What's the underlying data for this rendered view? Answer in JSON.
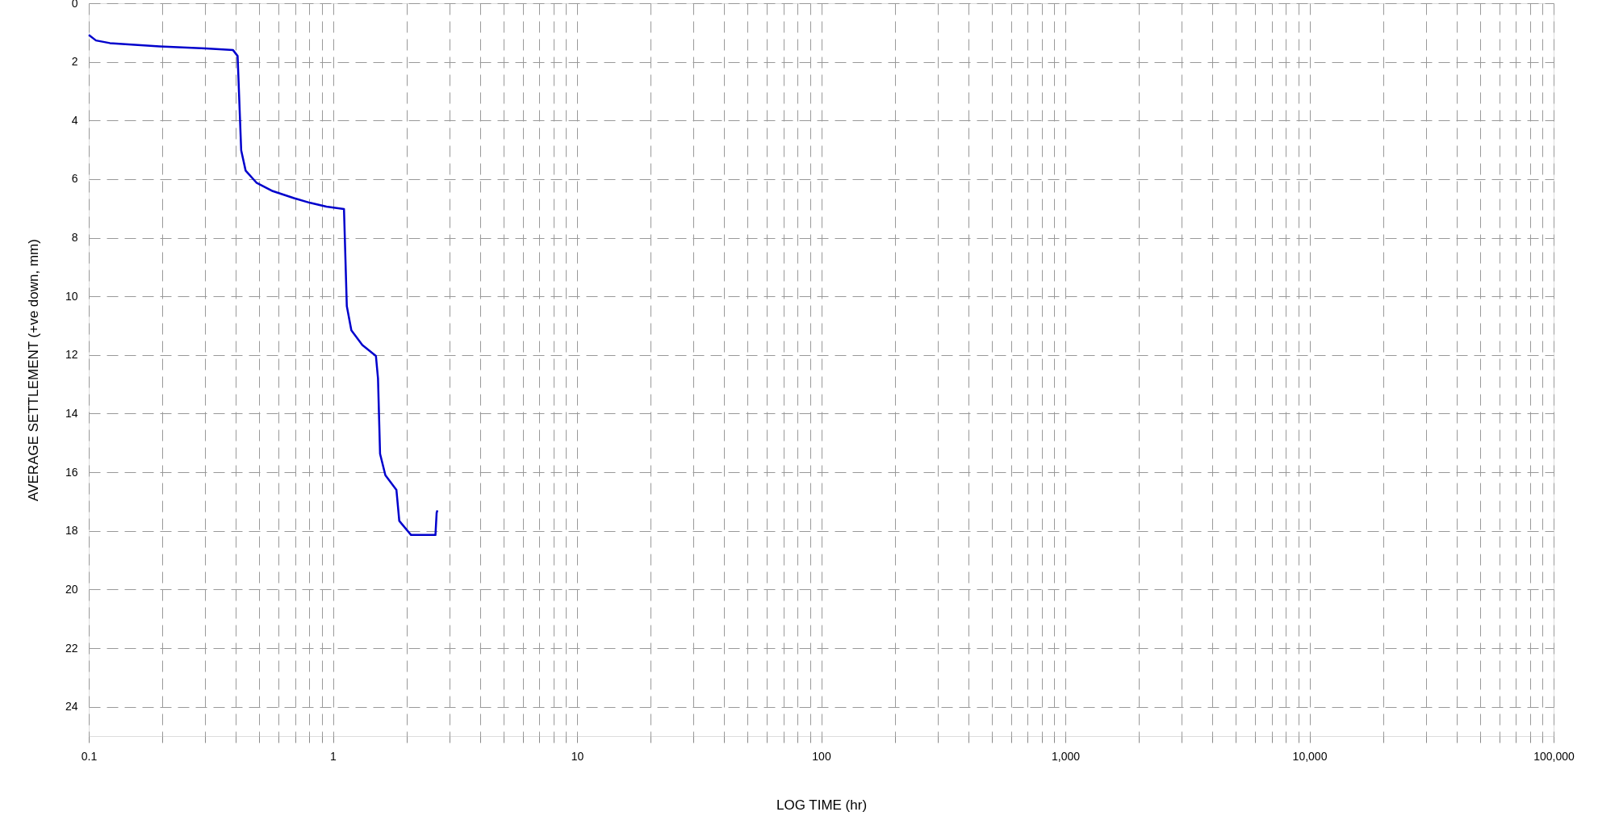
{
  "chart_data": {
    "type": "line",
    "xlabel": "LOG TIME (hr)",
    "ylabel": "AVERAGE SETTLEMENT (+ve down, mm)",
    "log": "x",
    "grid": true,
    "line_style": "solid",
    "xlim": [
      0.1,
      100000
    ],
    "ylim": [
      25,
      0
    ],
    "xticks": [
      {
        "value": 0.1,
        "label": "0.1"
      },
      {
        "value": 0.2,
        "label": null
      },
      {
        "value": 0.3,
        "label": null
      },
      {
        "value": 0.4,
        "label": null
      },
      {
        "value": 0.5,
        "label": null
      },
      {
        "value": 0.6,
        "label": null
      },
      {
        "value": 0.7,
        "label": null
      },
      {
        "value": 0.8,
        "label": null
      },
      {
        "value": 0.9,
        "label": null
      },
      {
        "value": 1,
        "label": "1"
      },
      {
        "value": 2,
        "label": null
      },
      {
        "value": 3,
        "label": null
      },
      {
        "value": 4,
        "label": null
      },
      {
        "value": 5,
        "label": null
      },
      {
        "value": 6,
        "label": null
      },
      {
        "value": 7,
        "label": null
      },
      {
        "value": 8,
        "label": null
      },
      {
        "value": 9,
        "label": null
      },
      {
        "value": 10,
        "label": "10"
      },
      {
        "value": 20,
        "label": null
      },
      {
        "value": 30,
        "label": null
      },
      {
        "value": 40,
        "label": null
      },
      {
        "value": 50,
        "label": null
      },
      {
        "value": 60,
        "label": null
      },
      {
        "value": 70,
        "label": null
      },
      {
        "value": 80,
        "label": null
      },
      {
        "value": 90,
        "label": null
      },
      {
        "value": 100,
        "label": "100"
      },
      {
        "value": 200,
        "label": null
      },
      {
        "value": 300,
        "label": null
      },
      {
        "value": 400,
        "label": null
      },
      {
        "value": 500,
        "label": null
      },
      {
        "value": 600,
        "label": null
      },
      {
        "value": 700,
        "label": null
      },
      {
        "value": 800,
        "label": null
      },
      {
        "value": 900,
        "label": null
      },
      {
        "value": 1000,
        "label": "1,000"
      },
      {
        "value": 2000,
        "label": null
      },
      {
        "value": 3000,
        "label": null
      },
      {
        "value": 4000,
        "label": null
      },
      {
        "value": 5000,
        "label": null
      },
      {
        "value": 6000,
        "label": null
      },
      {
        "value": 7000,
        "label": null
      },
      {
        "value": 8000,
        "label": null
      },
      {
        "value": 9000,
        "label": null
      },
      {
        "value": 10000,
        "label": "10,000"
      },
      {
        "value": 20000,
        "label": null
      },
      {
        "value": 30000,
        "label": null
      },
      {
        "value": 40000,
        "label": null
      },
      {
        "value": 50000,
        "label": null
      },
      {
        "value": 60000,
        "label": null
      },
      {
        "value": 70000,
        "label": null
      },
      {
        "value": 80000,
        "label": null
      },
      {
        "value": 90000,
        "label": null
      },
      {
        "value": 100000,
        "label": "100,000"
      }
    ],
    "yticks": [
      0,
      2,
      4,
      6,
      8,
      10,
      12,
      14,
      16,
      18,
      20,
      22,
      24
    ],
    "series": [
      {
        "color": "#0000cc",
        "x": [
          0.1,
          0.107,
          0.122,
          0.195,
          0.301,
          0.39,
          0.407,
          0.421,
          0.439,
          0.486,
          0.567,
          0.693,
          0.807,
          0.941,
          1.11,
          1.14,
          1.19,
          1.32,
          1.5,
          1.53,
          1.56,
          1.64,
          1.82,
          1.87,
          2.09,
          2.63,
          2.66,
          2.68
        ],
        "values": [
          1.08,
          1.27,
          1.36,
          1.47,
          1.54,
          1.6,
          1.8,
          5.02,
          5.71,
          6.12,
          6.41,
          6.65,
          6.81,
          6.94,
          7.02,
          10.33,
          11.16,
          11.66,
          12.03,
          12.8,
          15.37,
          16.1,
          16.6,
          17.66,
          18.14,
          18.14,
          17.38,
          17.3
        ]
      }
    ]
  }
}
